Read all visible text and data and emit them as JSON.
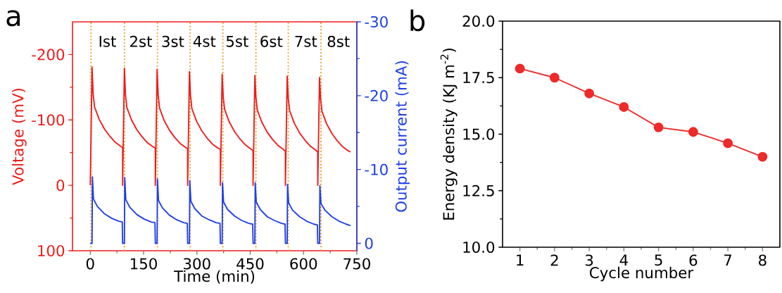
{
  "chart_data": [
    {
      "type": "line",
      "title": "a",
      "xlabel": "Time (min)",
      "ylabel": "Voltage (mV)",
      "y2label": "Output current (mA)",
      "xlim": [
        -50,
        750
      ],
      "xticks": [
        0,
        150,
        300,
        450,
        600,
        750
      ],
      "ylim": [
        100,
        -250
      ],
      "yticks": [
        -200,
        -100,
        0,
        100
      ],
      "y2lim": [
        1,
        -30
      ],
      "y2ticks": [
        -30,
        -20,
        -10,
        0
      ],
      "marker": "none",
      "line_style": "solid",
      "ref_lines": [
        {
          "axis": "x",
          "value": 2,
          "color": "#e8a838",
          "line_style": "dotted"
        },
        {
          "axis": "x",
          "value": 96,
          "color": "#e8a838",
          "line_style": "dotted"
        },
        {
          "axis": "x",
          "value": 189,
          "color": "#e8a838",
          "line_style": "dotted"
        },
        {
          "axis": "x",
          "value": 281,
          "color": "#e8a838",
          "line_style": "dotted"
        },
        {
          "axis": "x",
          "value": 373,
          "color": "#e8a838",
          "line_style": "dotted"
        },
        {
          "axis": "x",
          "value": 466,
          "color": "#e8a838",
          "line_style": "dotted"
        },
        {
          "axis": "x",
          "value": 557,
          "color": "#e8a838",
          "line_style": "dotted"
        },
        {
          "axis": "x",
          "value": 649,
          "color": "#e8a838",
          "line_style": "dotted"
        }
      ],
      "annotations": [
        {
          "text": "Ist",
          "x": 48,
          "y": -220
        },
        {
          "text": "2st",
          "x": 142,
          "y": -220
        },
        {
          "text": "3st",
          "x": 232,
          "y": -220
        },
        {
          "text": "4st",
          "x": 321,
          "y": -220
        },
        {
          "text": "5st",
          "x": 413,
          "y": -220
        },
        {
          "text": "6st",
          "x": 509,
          "y": -220
        },
        {
          "text": "7st",
          "x": 606,
          "y": -220
        },
        {
          "text": "8st",
          "x": 698,
          "y": -220
        }
      ],
      "series": [
        {
          "color": "#ee1c1c",
          "x": [
            0,
            5,
            8,
            12,
            25,
            40,
            55,
            70,
            85,
            91,
            91,
            96,
            99,
            103,
            116,
            131,
            146,
            161,
            176,
            183,
            183,
            188,
            191,
            195,
            208,
            223,
            238,
            253,
            268,
            274,
            274,
            279,
            282,
            286,
            299,
            314,
            329,
            344,
            359,
            366,
            366,
            371,
            374,
            378,
            391,
            406,
            421,
            436,
            451,
            458,
            458,
            463,
            466,
            470,
            483,
            498,
            513,
            528,
            543,
            549,
            549,
            554,
            557,
            561,
            574,
            589,
            604,
            619,
            634,
            640,
            640,
            645,
            648,
            652,
            665,
            680,
            695,
            710,
            725,
            732
          ],
          "values": [
            0,
            -181,
            -140,
            -120,
            -101,
            -86,
            -75,
            -66,
            -60,
            -58,
            0,
            -179,
            -139,
            -119,
            -100,
            -85,
            -74,
            -65,
            -59,
            -57,
            0,
            -177,
            -138,
            -118,
            -99,
            -84,
            -73,
            -64,
            -58,
            -56,
            0,
            -174,
            -137,
            -117,
            -98,
            -83,
            -72,
            -63,
            -57,
            -55,
            0,
            -170,
            -135,
            -116,
            -97,
            -82,
            -71,
            -62,
            -56,
            -53,
            0,
            -168,
            -134,
            -115,
            -96,
            -81,
            -70,
            -61,
            -55,
            -52,
            0,
            -167,
            -133,
            -114,
            -95,
            -80,
            -69,
            -60,
            -54,
            -51,
            0,
            -165,
            -132,
            -113,
            -94,
            -79,
            -68,
            -59,
            -53,
            -51
          ]
        },
        {
          "color": "#1f3fe6",
          "axis": "y2",
          "x": [
            0,
            5,
            6,
            9,
            20,
            40,
            60,
            80,
            90,
            91,
            96,
            97,
            100,
            111,
            131,
            151,
            171,
            182,
            183,
            188,
            189,
            192,
            203,
            223,
            243,
            263,
            273,
            274,
            279,
            280,
            283,
            294,
            314,
            334,
            354,
            365,
            366,
            371,
            372,
            375,
            386,
            406,
            426,
            446,
            457,
            458,
            463,
            464,
            467,
            478,
            498,
            518,
            538,
            548,
            549,
            554,
            555,
            558,
            569,
            589,
            609,
            629,
            639,
            640,
            645,
            646,
            649,
            660,
            680,
            700,
            720,
            732
          ],
          "values": [
            0,
            0,
            -9.0,
            -6.0,
            -5.0,
            -4.0,
            -3.4,
            -3.0,
            -2.9,
            0,
            0,
            -8.9,
            -5.9,
            -4.9,
            -3.9,
            -3.3,
            -2.9,
            -2.8,
            0,
            0,
            -8.7,
            -5.8,
            -4.8,
            -3.8,
            -3.2,
            -2.8,
            -2.7,
            0,
            0,
            -8.5,
            -5.7,
            -4.7,
            -3.7,
            -3.2,
            -2.8,
            -2.7,
            0,
            0,
            -8.2,
            -5.6,
            -4.6,
            -3.7,
            -3.1,
            -2.7,
            -2.6,
            0,
            0,
            -8.2,
            -5.6,
            -4.6,
            -3.6,
            -3.1,
            -2.7,
            -2.6,
            0,
            0,
            -8.0,
            -5.5,
            -4.5,
            -3.6,
            -3.0,
            -2.6,
            -2.5,
            0,
            0,
            -7.8,
            -5.4,
            -4.5,
            -3.6,
            -3.0,
            -2.6,
            -2.4
          ]
        }
      ]
    },
    {
      "type": "line",
      "title": "b",
      "xlabel": "Cycle number",
      "ylabel": "Energy density (KJ m$^{-2}$)",
      "xlim": [
        0.5,
        8.5
      ],
      "xticks": [
        1,
        2,
        3,
        4,
        5,
        6,
        7,
        8
      ],
      "ylim": [
        10,
        20
      ],
      "yticks": [
        {
          "value": 10,
          "label": "10.0"
        },
        {
          "value": 12.5,
          "label": "12.5"
        },
        {
          "value": 15,
          "label": "15.0"
        },
        {
          "value": 17.5,
          "label": "17.5"
        },
        {
          "value": 20,
          "label": "20.0"
        }
      ],
      "marker": "circle",
      "line_style": "solid",
      "series": [
        {
          "color": "#ee2a2a",
          "x": [
            1,
            2,
            3,
            4,
            5,
            6,
            7,
            8
          ],
          "values": [
            17.9,
            17.5,
            16.8,
            16.2,
            15.3,
            15.1,
            14.6,
            14.0
          ]
        }
      ]
    }
  ]
}
